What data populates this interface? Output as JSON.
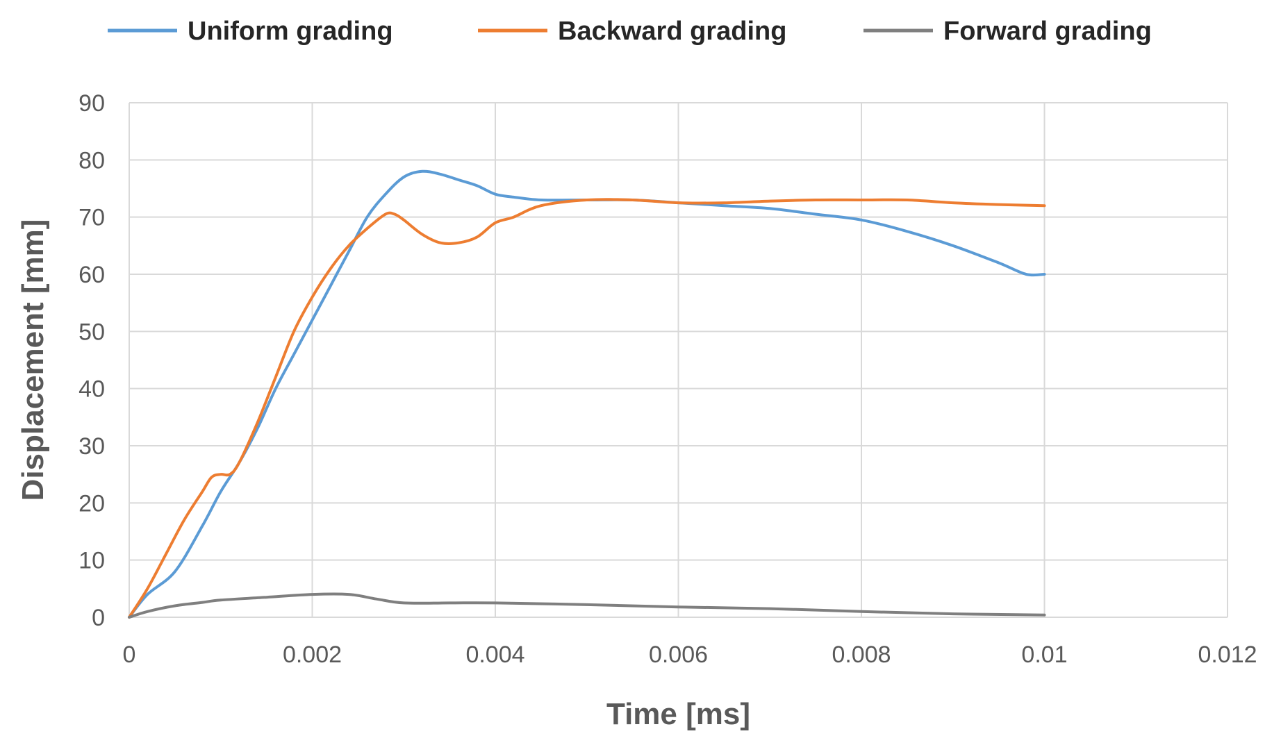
{
  "chart_data": {
    "type": "line",
    "xlabel": "Time [ms]",
    "ylabel": "Displacement  [mm]",
    "xlim": [
      0,
      0.012
    ],
    "ylim": [
      0,
      90
    ],
    "x_ticks": [
      "0",
      "0.002",
      "0.004",
      "0.006",
      "0.008",
      "0.01",
      "0.012"
    ],
    "y_ticks": [
      "0",
      "10",
      "20",
      "30",
      "40",
      "50",
      "60",
      "70",
      "80",
      "90"
    ],
    "grid": true,
    "legend_position": "top",
    "series": [
      {
        "name": "Uniform grading",
        "color": "#5b9bd5",
        "points": [
          [
            0,
            0
          ],
          [
            0.0002,
            4
          ],
          [
            0.0005,
            8
          ],
          [
            0.0008,
            16
          ],
          [
            0.001,
            22
          ],
          [
            0.0012,
            27
          ],
          [
            0.0014,
            33
          ],
          [
            0.0016,
            40
          ],
          [
            0.0018,
            46
          ],
          [
            0.002,
            52
          ],
          [
            0.0022,
            58
          ],
          [
            0.0024,
            64
          ],
          [
            0.0026,
            70
          ],
          [
            0.0028,
            74
          ],
          [
            0.003,
            77
          ],
          [
            0.0032,
            78
          ],
          [
            0.0034,
            77.5
          ],
          [
            0.0036,
            76.5
          ],
          [
            0.0038,
            75.5
          ],
          [
            0.004,
            74
          ],
          [
            0.0042,
            73.5
          ],
          [
            0.0045,
            73
          ],
          [
            0.005,
            73
          ],
          [
            0.0055,
            73
          ],
          [
            0.006,
            72.5
          ],
          [
            0.0065,
            72
          ],
          [
            0.007,
            71.5
          ],
          [
            0.0075,
            70.5
          ],
          [
            0.008,
            69.5
          ],
          [
            0.0085,
            67.5
          ],
          [
            0.009,
            65
          ],
          [
            0.0095,
            62
          ],
          [
            0.0098,
            60
          ],
          [
            0.01,
            60
          ]
        ]
      },
      {
        "name": "Backward grading",
        "color": "#ed7d31",
        "points": [
          [
            0,
            0
          ],
          [
            0.0002,
            5
          ],
          [
            0.0004,
            11
          ],
          [
            0.0006,
            17
          ],
          [
            0.0008,
            22
          ],
          [
            0.0009,
            24.5
          ],
          [
            0.001,
            25
          ],
          [
            0.0011,
            25
          ],
          [
            0.0012,
            27
          ],
          [
            0.0014,
            34
          ],
          [
            0.0016,
            42
          ],
          [
            0.0018,
            50
          ],
          [
            0.002,
            56
          ],
          [
            0.0022,
            61
          ],
          [
            0.0024,
            65
          ],
          [
            0.0026,
            68
          ],
          [
            0.0028,
            70.5
          ],
          [
            0.0029,
            70.5
          ],
          [
            0.003,
            69.5
          ],
          [
            0.0032,
            67
          ],
          [
            0.0034,
            65.5
          ],
          [
            0.0036,
            65.5
          ],
          [
            0.0038,
            66.5
          ],
          [
            0.004,
            69
          ],
          [
            0.0042,
            70
          ],
          [
            0.0045,
            72
          ],
          [
            0.005,
            73
          ],
          [
            0.0055,
            73
          ],
          [
            0.006,
            72.5
          ],
          [
            0.0065,
            72.5
          ],
          [
            0.007,
            72.8
          ],
          [
            0.0075,
            73
          ],
          [
            0.008,
            73
          ],
          [
            0.0085,
            73
          ],
          [
            0.009,
            72.5
          ],
          [
            0.0095,
            72.2
          ],
          [
            0.01,
            72
          ]
        ]
      },
      {
        "name": "Forward grading",
        "color": "#7f7f7f",
        "points": [
          [
            0,
            0
          ],
          [
            0.0002,
            1
          ],
          [
            0.0005,
            2
          ],
          [
            0.0008,
            2.6
          ],
          [
            0.001,
            3
          ],
          [
            0.0015,
            3.5
          ],
          [
            0.002,
            4
          ],
          [
            0.0024,
            4
          ],
          [
            0.0027,
            3.2
          ],
          [
            0.003,
            2.5
          ],
          [
            0.0035,
            2.5
          ],
          [
            0.004,
            2.5
          ],
          [
            0.005,
            2.2
          ],
          [
            0.006,
            1.8
          ],
          [
            0.007,
            1.5
          ],
          [
            0.008,
            1
          ],
          [
            0.009,
            0.6
          ],
          [
            0.01,
            0.4
          ]
        ]
      }
    ]
  }
}
